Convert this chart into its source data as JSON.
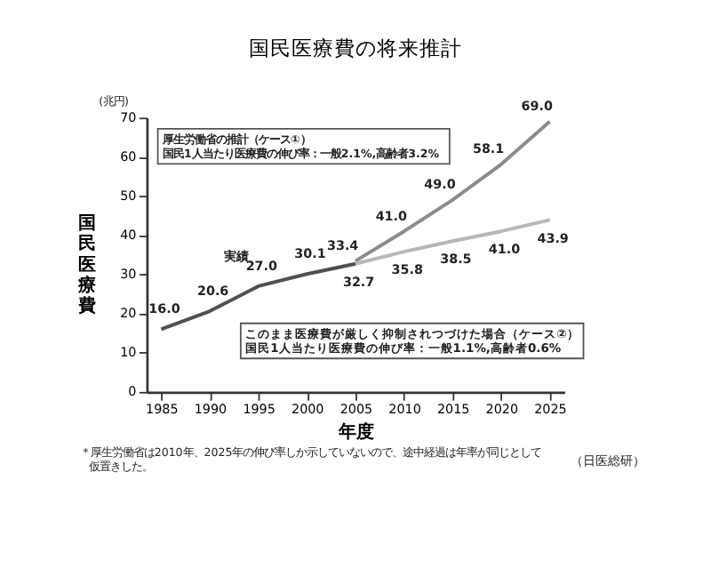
{
  "chart_data": {
    "type": "line",
    "title": "国民医療費の将来推計",
    "xlabel": "年度",
    "ylabel": "国民医療費",
    "categories": [
      "1985",
      "1990",
      "1995",
      "2000",
      "2005",
      "2010",
      "2015",
      "2020",
      "2025"
    ],
    "series": [
      {
        "name": "実績",
        "color": "#505050",
        "values": [
          16.0,
          20.6,
          27.0,
          30.1,
          32.7,
          null,
          null,
          null,
          null
        ],
        "value_labels": [
          "16.0",
          "20.6",
          "27.0",
          "30.1",
          null,
          null,
          null,
          null,
          null
        ]
      },
      {
        "color": "#8c8c8c",
        "values": [
          null,
          null,
          null,
          null,
          33.4,
          41.0,
          49.0,
          58.1,
          69.0
        ],
        "value_labels": [
          null,
          null,
          null,
          null,
          "33.4",
          "41.0",
          "49.0",
          "58.1",
          "69.0"
        ]
      },
      {
        "color": "#b8b8b8",
        "values": [
          null,
          null,
          null,
          null,
          32.7,
          35.8,
          38.5,
          41.0,
          43.9
        ],
        "value_labels": [
          null,
          null,
          null,
          null,
          "32.7",
          "35.8",
          "38.5",
          "41.0",
          "43.9"
        ]
      }
    ],
    "ylim": [
      0,
      70
    ],
    "yticks": [
      0,
      10,
      20,
      30,
      40,
      50,
      60,
      70
    ],
    "grid": false,
    "legend": false,
    "marker": "none",
    "line_style": "solid",
    "annotations": [
      "(兆円)",
      "厚生労働省の推計（ケース①）",
      "国民1人当たり医療費の伸び率：一般2.1%,高齢者3.2%",
      "このまま医療費が厳しく抑制されつづけた場合（ケース②）",
      "国民1人当たり医療費の伸び率：一般1.1%,高齢者0.6%",
      "＊厚生労働省は2010年、2025年の伸び率しか示していないので、途中経過は年率が同じとして",
      "仮置きした。",
      "（日医総研）"
    ]
  }
}
